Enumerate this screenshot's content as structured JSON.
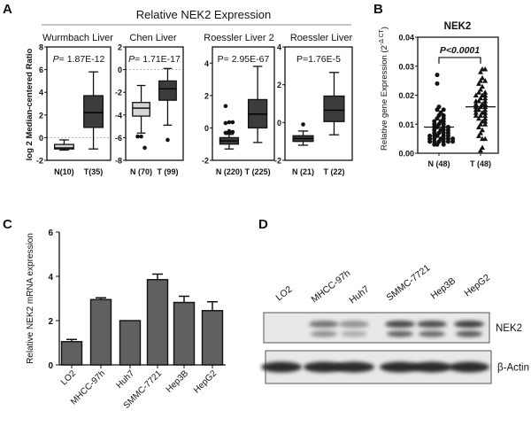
{
  "panels": {
    "a": "A",
    "b": "B",
    "c": "C",
    "d": "D"
  },
  "chart_data": [
    {
      "type": "box",
      "panel": "A",
      "title": "Relative NEK2 Expression",
      "ylabel": "log 2 Median-centered Ratio",
      "subplots": [
        {
          "title": "Wurmbach Liver",
          "p_italic": "P",
          "p_rest": "= 1.87E-12",
          "ylim": [
            -2,
            8
          ],
          "yticks": [
            "8",
            "6",
            "4",
            "2",
            "0",
            "-2"
          ],
          "ytick_values": [
            8,
            6,
            4,
            2,
            0,
            -2
          ],
          "zero_line": true,
          "groups": [
            {
              "label": "N(10)",
              "fill": "light",
              "stats": [
                -1.1,
                -1.0,
                -0.9,
                -0.6,
                -0.2
              ],
              "outliers": []
            },
            {
              "label": "T(35)",
              "fill": "dark",
              "stats": [
                -1.0,
                0.9,
                2.2,
                3.7,
                5.8
              ],
              "outliers": []
            }
          ]
        },
        {
          "title": "Chen Liver",
          "p_italic": "P",
          "p_rest": "= 1.71E-17",
          "ylim": [
            -8,
            2
          ],
          "yticks": [
            "2",
            "0",
            "-2",
            "-4",
            "-6",
            "-8"
          ],
          "ytick_values": [
            2,
            0,
            -2,
            -4,
            -6,
            -8
          ],
          "zero_line": true,
          "groups": [
            {
              "label": "N (70)",
              "fill": "light",
              "stats": [
                -5.6,
                -4.1,
                -3.4,
                -2.9,
                -1.4
              ],
              "outliers": [
                -5.9,
                -5.9,
                -6.9
              ]
            },
            {
              "label": "T (99)",
              "fill": "dark",
              "stats": [
                -4.9,
                -2.7,
                -1.7,
                -1.0,
                0.1
              ],
              "outliers": [
                -6.2
              ]
            }
          ]
        },
        {
          "title": "Roessler Liver 2",
          "p_italic": "",
          "p_rest": "P= 2.95E-67",
          "ylim": [
            -2,
            5
          ],
          "yticks": [
            "4",
            "2",
            "0",
            "-2"
          ],
          "ytick_values": [
            4,
            2,
            0,
            -2
          ],
          "zero_line": false,
          "groups": [
            {
              "label": "N (220)",
              "fill": "dark",
              "stats": [
                -1.3,
                -1.0,
                -0.8,
                -0.6,
                -0.4
              ],
              "outliers": [
                1.35,
                0.35,
                0.35,
                0.3,
                -0.2,
                -0.25,
                -0.3,
                -0.3
              ]
            },
            {
              "label": "T (225)",
              "fill": "dark",
              "stats": [
                -0.9,
                0.0,
                0.85,
                1.75,
                3.8
              ],
              "outliers": []
            }
          ]
        },
        {
          "title": "Roessler Liver",
          "p_italic": "",
          "p_rest": "P=1.76E-5",
          "ylim": [
            -2,
            4
          ],
          "yticks": [
            "4",
            "2",
            "0",
            "-2"
          ],
          "ytick_values": [
            4,
            2,
            0,
            -2
          ],
          "zero_line": false,
          "groups": [
            {
              "label": "N (21)",
              "fill": "dark",
              "stats": [
                -1.2,
                -1.0,
                -0.85,
                -0.7,
                -0.45
              ],
              "outliers": [
                -0.1
              ]
            },
            {
              "label": "T (22)",
              "fill": "dark",
              "stats": [
                -0.65,
                0.05,
                0.65,
                1.4,
                2.65
              ],
              "outliers": []
            }
          ]
        }
      ]
    },
    {
      "type": "scatter",
      "panel": "B",
      "title": "NEK2",
      "ylabel_main": "Relative gene Expression (2",
      "ylabel_sup": "-Δ CT",
      "ylabel_end": ")",
      "ylim": [
        0,
        0.04
      ],
      "yticks": [
        "0.04",
        "0.03",
        "0.02",
        "0.01",
        "0.00"
      ],
      "ytick_values": [
        0.04,
        0.03,
        0.02,
        0.01,
        0.0
      ],
      "annotation": "P<0.0001",
      "bracket_y": 0.033,
      "groups": [
        {
          "label": "N (48)",
          "marker": "circle",
          "mean": 0.009,
          "values": [
            0.027,
            0.024,
            0.016,
            0.015,
            0.015,
            0.014,
            0.013,
            0.013,
            0.012,
            0.012,
            0.011,
            0.011,
            0.011,
            0.01,
            0.01,
            0.01,
            0.009,
            0.009,
            0.009,
            0.009,
            0.008,
            0.008,
            0.008,
            0.008,
            0.007,
            0.007,
            0.007,
            0.007,
            0.006,
            0.006,
            0.006,
            0.006,
            0.006,
            0.005,
            0.005,
            0.005,
            0.005,
            0.005,
            0.005,
            0.004,
            0.004,
            0.004,
            0.004,
            0.004,
            0.004,
            0.003,
            0.003,
            0.003
          ]
        },
        {
          "label": "T (48)",
          "marker": "triangle",
          "mean": 0.016,
          "values": [
            0.029,
            0.029,
            0.028,
            0.026,
            0.025,
            0.025,
            0.024,
            0.023,
            0.022,
            0.021,
            0.021,
            0.02,
            0.02,
            0.02,
            0.019,
            0.019,
            0.018,
            0.018,
            0.018,
            0.017,
            0.017,
            0.017,
            0.016,
            0.016,
            0.016,
            0.015,
            0.015,
            0.015,
            0.014,
            0.014,
            0.014,
            0.013,
            0.013,
            0.013,
            0.012,
            0.012,
            0.011,
            0.011,
            0.01,
            0.01,
            0.009,
            0.008,
            0.007,
            0.006,
            0.005,
            0.005,
            0.002,
            0.001
          ]
        }
      ]
    },
    {
      "type": "bar",
      "panel": "C",
      "ylabel": "Relative  NEK2 mRNA expression",
      "ylim": [
        0,
        6
      ],
      "yticks": [
        "6",
        "4",
        "2",
        "0"
      ],
      "ytick_values": [
        6,
        4,
        2,
        0
      ],
      "categories": [
        "LO2",
        "MHCC-97h",
        "Huh7",
        "SMMC-7721",
        "Hep3B",
        "HepG2"
      ],
      "values": [
        1.05,
        2.95,
        2.0,
        3.85,
        2.82,
        2.45
      ],
      "errors": [
        0.1,
        0.08,
        0.0,
        0.25,
        0.28,
        0.4
      ],
      "bar_color": "#606060"
    }
  ],
  "western_blot": {
    "panel": "D",
    "lanes": [
      "LO2",
      "MHCC-97h",
      "Huh7",
      "SMMC-7721",
      "Hep3B",
      "HepG2"
    ],
    "bands": [
      {
        "label": "NEK2",
        "relative_intensity": [
          0.0,
          0.55,
          0.35,
          0.85,
          0.8,
          0.9
        ]
      },
      {
        "label": "β-Actin",
        "relative_intensity": [
          1,
          1,
          1,
          1,
          1,
          1
        ]
      }
    ]
  },
  "colors": {
    "dark_box": "#3c3c3c",
    "light_box": "#d6d6d6",
    "axis": "#111111",
    "rule": "#b0b0b0"
  }
}
